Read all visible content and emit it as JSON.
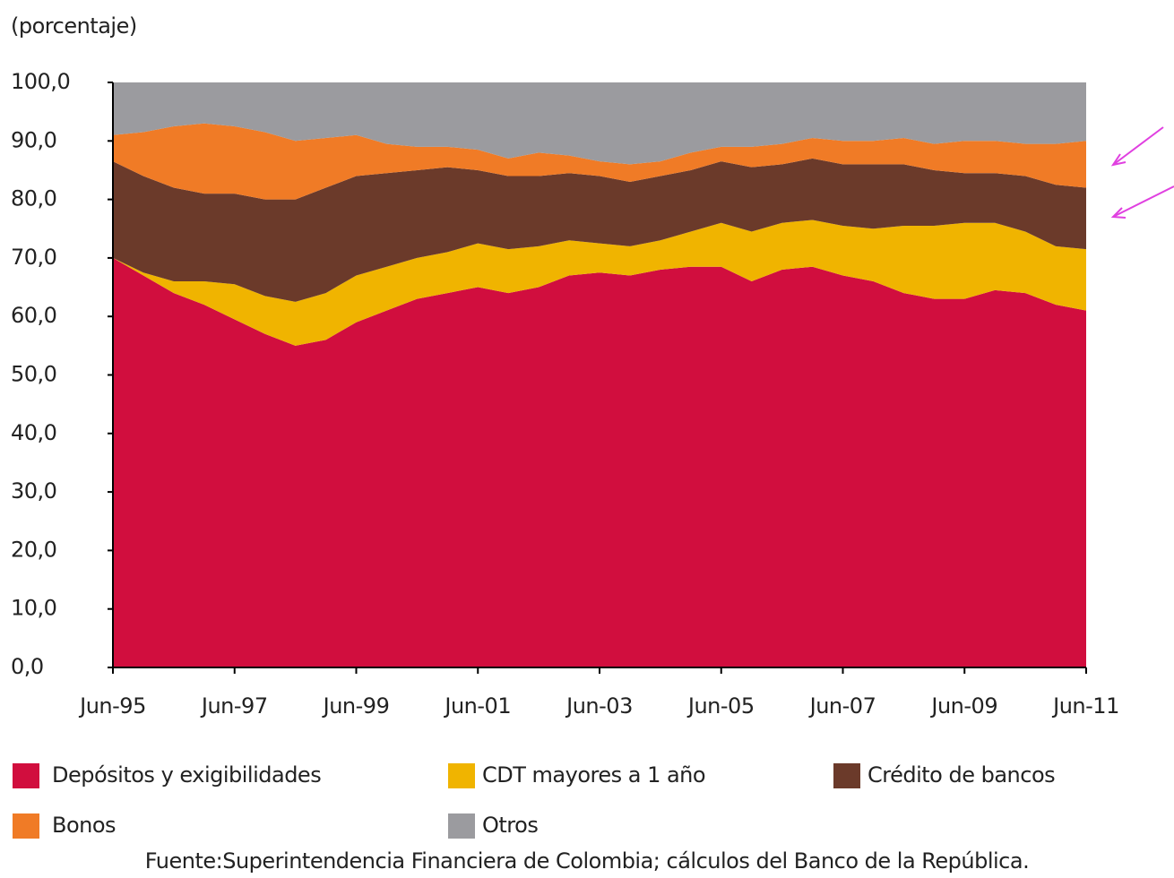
{
  "chart_data": {
    "type": "stacked_area",
    "subtitle": "(porcentaje)",
    "source": "Fuente:Superintendencia Financiera de Colombia; cálculos del Banco de la República.",
    "categories": [
      "Jun-95",
      null,
      null,
      null,
      "Jun-97",
      null,
      null,
      null,
      "Jun-99",
      null,
      null,
      null,
      "Jun-01",
      null,
      null,
      null,
      "Jun-03",
      null,
      null,
      null,
      "Jun-05",
      null,
      null,
      null,
      "Jun-07",
      null,
      null,
      null,
      "Jun-09",
      null,
      null,
      null,
      "Jun-11"
    ],
    "series": [
      {
        "name": "Depósitos y exigibilidades",
        "color": "#d10e3e",
        "values": [
          70,
          67,
          64,
          62,
          59.5,
          57,
          55,
          56,
          59,
          61,
          63,
          64,
          65,
          64,
          65,
          67,
          67.5,
          67,
          68,
          68.5,
          68.5,
          66,
          68,
          68.5,
          67,
          66,
          64,
          63,
          63,
          64.5,
          64,
          62,
          61
        ]
      },
      {
        "name": "CDT mayores a 1 año",
        "color": "#f0b400",
        "values": [
          0,
          0.5,
          2,
          4,
          6,
          6.5,
          7.5,
          8,
          8,
          7.5,
          7,
          7,
          7.5,
          7.5,
          7,
          6,
          5,
          5,
          5,
          6,
          7.5,
          8.5,
          8,
          8,
          8.5,
          9,
          11.5,
          12.5,
          13,
          11.5,
          10.5,
          10,
          10.5
        ]
      },
      {
        "name": "Crédito de bancos",
        "color": "#6b3a2a",
        "values": [
          16.5,
          16.5,
          16,
          15,
          15.5,
          16.5,
          17.5,
          18,
          17,
          16,
          15,
          14.5,
          12.5,
          12.5,
          12,
          11.5,
          11.5,
          11,
          11,
          10.5,
          10.5,
          11,
          10,
          10.5,
          10.5,
          11,
          10.5,
          9.5,
          8.5,
          8.5,
          9.5,
          10.5,
          10.5
        ]
      },
      {
        "name": "Bonos",
        "color": "#f07b26",
        "values": [
          4.5,
          7.5,
          10.5,
          12,
          11.5,
          11.5,
          10,
          8.5,
          7,
          5,
          4,
          3.5,
          3.5,
          3,
          4,
          3,
          2.5,
          3,
          2.5,
          3,
          2.5,
          3.5,
          3.5,
          3.5,
          4,
          4,
          4.5,
          4.5,
          5.5,
          5.5,
          5.5,
          7,
          8
        ]
      },
      {
        "name": "Otros",
        "color": "#9b9b9f",
        "values": [
          9,
          8.5,
          7.5,
          7,
          7.5,
          8.5,
          10,
          9.5,
          9,
          10.5,
          11,
          11,
          11.5,
          13,
          12,
          12.5,
          13.5,
          14,
          13.5,
          12,
          11,
          11,
          10.5,
          9.5,
          10,
          10,
          9.5,
          10.5,
          10,
          10,
          10.5,
          10.5,
          10
        ]
      }
    ],
    "ylim": [
      0,
      100
    ],
    "yticks": [
      {
        "value": 0,
        "label": "0,0"
      },
      {
        "value": 10,
        "label": "10,0"
      },
      {
        "value": 20,
        "label": "20,0"
      },
      {
        "value": 30,
        "label": "30,0"
      },
      {
        "value": 40,
        "label": "40,0"
      },
      {
        "value": 50,
        "label": "50,0"
      },
      {
        "value": 60,
        "label": "60,0"
      },
      {
        "value": 70,
        "label": "70,0"
      },
      {
        "value": 80,
        "label": "80,0"
      },
      {
        "value": 90,
        "label": "90,0"
      },
      {
        "value": 100,
        "label": "100,0"
      }
    ]
  }
}
